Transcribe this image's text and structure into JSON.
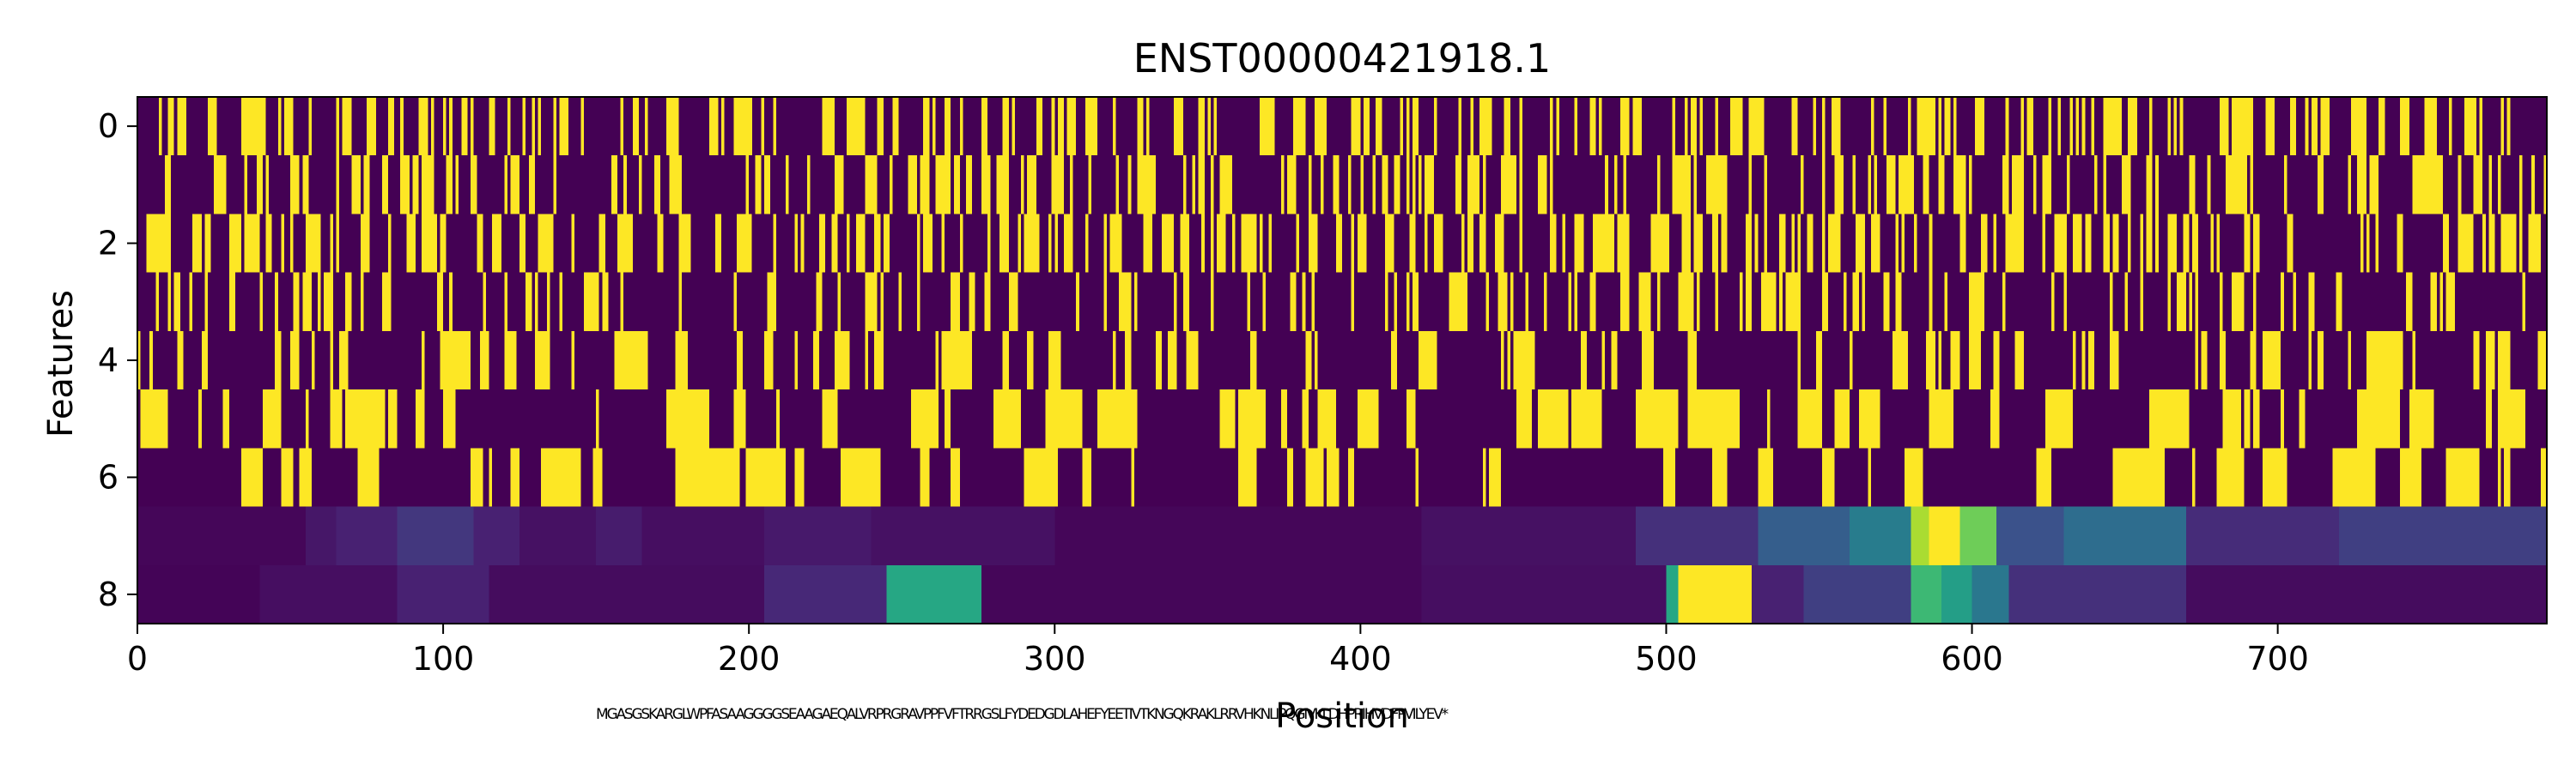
{
  "chart_data": {
    "type": "heatmap",
    "title": "ENST00000421918.1",
    "xlabel": "Position",
    "ylabel": "Features",
    "xlim": [
      0,
      788
    ],
    "ylim": [
      0,
      8
    ],
    "x_ticks": [
      0,
      100,
      200,
      300,
      400,
      500,
      600,
      700
    ],
    "y_ticks": [
      0,
      2,
      4,
      6,
      8
    ],
    "n_positions": 788,
    "n_features": 9,
    "colormap": "viridis",
    "value_range": [
      0,
      1
    ],
    "sequence_annotation": "MGASGSKARGLWPFASAAGGGGSEAAGAEQALVRPRGRAVPPFVFTRRGSLFYDEDGDLAHEFYEETIVTKNGQKRAKLRRVHKNLIPQGIVKLDHPRIHVDFPVILYEV*",
    "rows": [
      {
        "feature": 0,
        "kind": "binary",
        "density": 0.36,
        "mean_run": 2.2
      },
      {
        "feature": 1,
        "kind": "binary",
        "density": 0.3,
        "mean_run": 2.0
      },
      {
        "feature": 2,
        "kind": "binary",
        "density": 0.36,
        "mean_run": 2.3
      },
      {
        "feature": 3,
        "kind": "binary",
        "density": 0.22,
        "mean_run": 1.8
      },
      {
        "feature": 4,
        "kind": "binary",
        "density": 0.28,
        "mean_run": 3.0
      },
      {
        "feature": 5,
        "kind": "binary",
        "density": 0.4,
        "mean_run": 7.0
      },
      {
        "feature": 6,
        "kind": "binary",
        "density": 0.35,
        "mean_run": 7.0
      },
      {
        "feature": 7,
        "kind": "continuous",
        "segments": [
          {
            "start": 0,
            "end": 55,
            "value": 0.02
          },
          {
            "start": 55,
            "end": 65,
            "value": 0.08
          },
          {
            "start": 65,
            "end": 85,
            "value": 0.12
          },
          {
            "start": 85,
            "end": 110,
            "value": 0.18
          },
          {
            "start": 110,
            "end": 125,
            "value": 0.12
          },
          {
            "start": 125,
            "end": 150,
            "value": 0.06
          },
          {
            "start": 150,
            "end": 165,
            "value": 0.1
          },
          {
            "start": 165,
            "end": 205,
            "value": 0.05
          },
          {
            "start": 205,
            "end": 240,
            "value": 0.09
          },
          {
            "start": 240,
            "end": 300,
            "value": 0.06
          },
          {
            "start": 300,
            "end": 420,
            "value": 0.02
          },
          {
            "start": 420,
            "end": 490,
            "value": 0.06
          },
          {
            "start": 490,
            "end": 530,
            "value": 0.16
          },
          {
            "start": 530,
            "end": 560,
            "value": 0.3
          },
          {
            "start": 560,
            "end": 580,
            "value": 0.42
          },
          {
            "start": 580,
            "end": 586,
            "value": 0.88
          },
          {
            "start": 586,
            "end": 596,
            "value": 1.0
          },
          {
            "start": 596,
            "end": 608,
            "value": 0.78
          },
          {
            "start": 608,
            "end": 630,
            "value": 0.25
          },
          {
            "start": 630,
            "end": 670,
            "value": 0.36
          },
          {
            "start": 670,
            "end": 720,
            "value": 0.15
          },
          {
            "start": 720,
            "end": 788,
            "value": 0.2
          }
        ]
      },
      {
        "feature": 8,
        "kind": "continuous",
        "segments": [
          {
            "start": 0,
            "end": 40,
            "value": 0.01
          },
          {
            "start": 40,
            "end": 85,
            "value": 0.05
          },
          {
            "start": 85,
            "end": 115,
            "value": 0.12
          },
          {
            "start": 115,
            "end": 205,
            "value": 0.04
          },
          {
            "start": 205,
            "end": 245,
            "value": 0.14
          },
          {
            "start": 245,
            "end": 276,
            "value": 0.6
          },
          {
            "start": 276,
            "end": 420,
            "value": 0.02
          },
          {
            "start": 420,
            "end": 500,
            "value": 0.05
          },
          {
            "start": 500,
            "end": 504,
            "value": 0.6
          },
          {
            "start": 504,
            "end": 528,
            "value": 1.0
          },
          {
            "start": 528,
            "end": 545,
            "value": 0.12
          },
          {
            "start": 545,
            "end": 580,
            "value": 0.2
          },
          {
            "start": 580,
            "end": 590,
            "value": 0.68
          },
          {
            "start": 590,
            "end": 600,
            "value": 0.56
          },
          {
            "start": 600,
            "end": 612,
            "value": 0.4
          },
          {
            "start": 612,
            "end": 670,
            "value": 0.16
          },
          {
            "start": 670,
            "end": 788,
            "value": 0.04
          }
        ]
      }
    ]
  }
}
